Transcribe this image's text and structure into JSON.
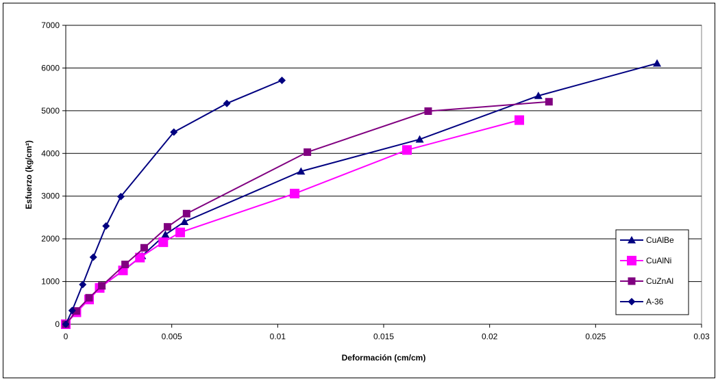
{
  "chart_data": {
    "type": "line",
    "xlabel": "Deformación (cm/cm)",
    "ylabel": "Esfuerzo (kg/cm²)",
    "xlim": [
      0,
      0.03
    ],
    "ylim": [
      0,
      7000
    ],
    "x_ticks": [
      "0",
      "0.005",
      "0.01",
      "0.015",
      "0.02",
      "0.025",
      "0.03"
    ],
    "y_ticks": [
      "0",
      "1000",
      "2000",
      "3000",
      "4000",
      "5000",
      "6000",
      "7000"
    ],
    "grid": "horizontal",
    "legend_position": "right",
    "series": [
      {
        "name": "CuAlBe",
        "color": "#000080",
        "marker": "triangle",
        "points": [
          [
            0,
            0
          ],
          [
            0.0005,
            300
          ],
          [
            0.0011,
            600
          ],
          [
            0.0017,
            900
          ],
          [
            0.0027,
            1250
          ],
          [
            0.0036,
            1600
          ],
          [
            0.0047,
            2100
          ],
          [
            0.0056,
            2400
          ],
          [
            0.0111,
            3580
          ],
          [
            0.0167,
            4330
          ],
          [
            0.0223,
            5350
          ],
          [
            0.0279,
            6110
          ]
        ]
      },
      {
        "name": "CuAlNi",
        "color": "#FF00FF",
        "marker": "square",
        "points": [
          [
            0,
            0
          ],
          [
            0.0005,
            280
          ],
          [
            0.0011,
            580
          ],
          [
            0.0016,
            850
          ],
          [
            0.0027,
            1260
          ],
          [
            0.0035,
            1560
          ],
          [
            0.0046,
            1920
          ],
          [
            0.0054,
            2150
          ],
          [
            0.0108,
            3060
          ],
          [
            0.0161,
            4080
          ],
          [
            0.0214,
            4780
          ]
        ]
      },
      {
        "name": "CuZnAl",
        "color": "#800080",
        "marker": "square",
        "points": [
          [
            0,
            0
          ],
          [
            0.0005,
            310
          ],
          [
            0.0011,
            620
          ],
          [
            0.0017,
            900
          ],
          [
            0.0028,
            1400
          ],
          [
            0.0037,
            1790
          ],
          [
            0.0048,
            2280
          ],
          [
            0.0057,
            2590
          ],
          [
            0.0114,
            4030
          ],
          [
            0.0171,
            4990
          ],
          [
            0.0228,
            5210
          ]
        ]
      },
      {
        "name": "A-36",
        "color": "#000080",
        "marker": "diamond",
        "points": [
          [
            0,
            0
          ],
          [
            0.0003,
            320
          ],
          [
            0.0008,
            930
          ],
          [
            0.0013,
            1570
          ],
          [
            0.0019,
            2300
          ],
          [
            0.0026,
            2990
          ],
          [
            0.0051,
            4500
          ],
          [
            0.0076,
            5170
          ],
          [
            0.0102,
            5710
          ]
        ]
      }
    ]
  }
}
